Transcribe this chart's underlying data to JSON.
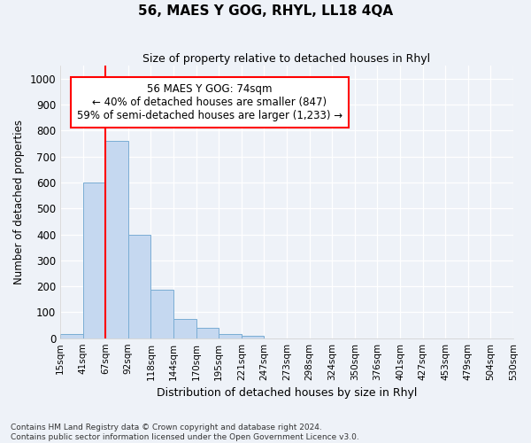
{
  "title": "56, MAES Y GOG, RHYL, LL18 4QA",
  "subtitle": "Size of property relative to detached houses in Rhyl",
  "xlabel": "Distribution of detached houses by size in Rhyl",
  "ylabel": "Number of detached properties",
  "bin_labels": [
    "15sqm",
    "41sqm",
    "67sqm",
    "92sqm",
    "118sqm",
    "144sqm",
    "170sqm",
    "195sqm",
    "221sqm",
    "247sqm",
    "273sqm",
    "298sqm",
    "324sqm",
    "350sqm",
    "376sqm",
    "401sqm",
    "427sqm",
    "453sqm",
    "479sqm",
    "504sqm",
    "530sqm"
  ],
  "bar_values": [
    15,
    600,
    760,
    400,
    185,
    75,
    40,
    15,
    10,
    0,
    0,
    0,
    0,
    0,
    0,
    0,
    0,
    0,
    0,
    0
  ],
  "bar_color": "#c5d8f0",
  "bar_edge_color": "#7aadd4",
  "vline_bin_index": 2,
  "annotation_line1": "56 MAES Y GOG: 74sqm",
  "annotation_line2": "← 40% of detached houses are smaller (847)",
  "annotation_line3": "59% of semi-detached houses are larger (1,233) →",
  "annotation_box_color": "white",
  "annotation_box_edge": "red",
  "ylim": [
    0,
    1050
  ],
  "yticks": [
    0,
    100,
    200,
    300,
    400,
    500,
    600,
    700,
    800,
    900,
    1000
  ],
  "footer_line1": "Contains HM Land Registry data © Crown copyright and database right 2024.",
  "footer_line2": "Contains public sector information licensed under the Open Government Licence v3.0.",
  "bg_color": "#eef2f8"
}
